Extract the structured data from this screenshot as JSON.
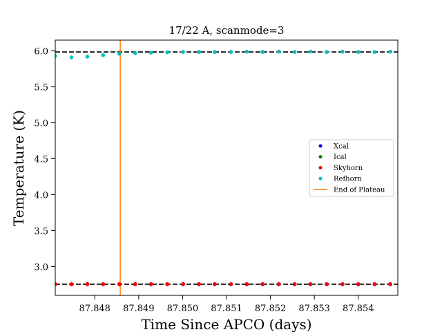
{
  "chart_data": {
    "type": "scatter",
    "title": "17/22 A, scanmode=3",
    "xlabel": "Time Since APCO (days)",
    "ylabel": "Temperature (K)",
    "xlim": [
      87.8471,
      87.8549
    ],
    "ylim": [
      2.6,
      6.15
    ],
    "xticks": [
      87.848,
      87.849,
      87.85,
      87.851,
      87.852,
      87.853,
      87.854
    ],
    "xtick_labels": [
      "87.848",
      "87.849",
      "87.850",
      "87.851",
      "87.852",
      "87.853",
      "87.854"
    ],
    "yticks": [
      3.0,
      3.5,
      4.0,
      4.5,
      5.0,
      5.5,
      6.0
    ],
    "ytick_labels": [
      "3.0",
      "3.5",
      "4.0",
      "4.5",
      "5.0",
      "5.5",
      "6.0"
    ],
    "legend_position": "right",
    "colors": {
      "Xcal": "#0000ff",
      "Ical": "#008000",
      "Skyhorn": "#ff0000",
      "Refhorn": "#00bfbf",
      "End of Plateau": "#ff7f0e",
      "reference_lines": "#000000"
    },
    "x": [
      87.8471,
      87.84747,
      87.84783,
      87.84819,
      87.84856,
      87.84892,
      87.84928,
      87.84965,
      87.85001,
      87.85037,
      87.85073,
      87.8511,
      87.85146,
      87.85182,
      87.85219,
      87.85255,
      87.85291,
      87.85328,
      87.85364,
      87.854,
      87.85437,
      87.85473
    ],
    "series": [
      {
        "name": "Xcal",
        "marker": "dot",
        "values": [
          2.755,
          2.755,
          2.755,
          2.755,
          2.755,
          2.755,
          2.755,
          2.755,
          2.755,
          2.755,
          2.755,
          2.755,
          2.755,
          2.755,
          2.755,
          2.755,
          2.755,
          2.755,
          2.755,
          2.755,
          2.755,
          2.755
        ]
      },
      {
        "name": "Ical",
        "marker": "dot",
        "values": [
          2.755,
          2.755,
          2.755,
          2.755,
          2.755,
          2.755,
          2.755,
          2.755,
          2.755,
          2.755,
          2.755,
          2.755,
          2.755,
          2.755,
          2.755,
          2.755,
          2.755,
          2.755,
          2.755,
          2.755,
          2.755,
          2.755
        ]
      },
      {
        "name": "Skyhorn",
        "marker": "dot",
        "values": [
          2.755,
          2.755,
          2.755,
          2.755,
          2.755,
          2.755,
          2.755,
          2.755,
          2.755,
          2.755,
          2.755,
          2.755,
          2.755,
          2.755,
          2.755,
          2.755,
          2.755,
          2.755,
          2.755,
          2.755,
          2.755,
          2.755
        ]
      },
      {
        "name": "Refhorn",
        "marker": "dot",
        "values": [
          5.93,
          5.91,
          5.92,
          5.94,
          5.96,
          5.97,
          5.975,
          5.98,
          5.985,
          5.985,
          5.985,
          5.985,
          5.99,
          5.985,
          5.99,
          5.985,
          5.99,
          5.985,
          5.99,
          5.985,
          5.985,
          5.99
        ]
      }
    ],
    "vertical_lines": [
      {
        "name": "End of Plateau",
        "x": 87.84858
      }
    ],
    "horizontal_lines": [
      {
        "y": 5.985,
        "style": "dashed"
      },
      {
        "y": 2.755,
        "style": "dashed"
      }
    ]
  }
}
